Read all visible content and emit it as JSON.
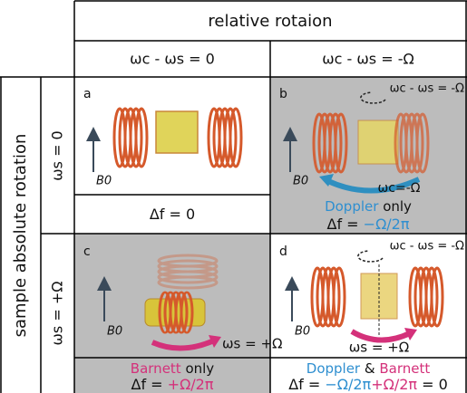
{
  "header": {
    "title": "relative rotaion",
    "columns": [
      "ωc - ωs = 0",
      "ωc - ωs = -Ω"
    ]
  },
  "rows_header": {
    "title": "sample absolute rotation",
    "rows": [
      "ωs = 0",
      "ωs = +Ω"
    ]
  },
  "panels": [
    {
      "letter": "a",
      "field_label": "B0",
      "formula": [
        "Δf = 0"
      ]
    },
    {
      "letter": "b",
      "field_label": "B0",
      "annotations": [
        "ωc - ωs = -Ω",
        "ωc=-Ω"
      ],
      "caption": [
        "Doppler",
        " only"
      ],
      "formula": [
        "Δf = ",
        "−Ω/2π"
      ]
    },
    {
      "letter": "c",
      "field_label": "B0",
      "annotations": [
        "ωs = +Ω"
      ],
      "caption": [
        "Barnett",
        " only"
      ],
      "formula": [
        "Δf = ",
        "+Ω/2π"
      ]
    },
    {
      "letter": "d",
      "field_label": "B0",
      "annotations": [
        "ωc - ωs = -Ω",
        "ωs = +Ω"
      ],
      "caption": [
        "Doppler",
        " & ",
        "Barnett"
      ],
      "formula": [
        "Δf = ",
        "−Ω/2π",
        "+Ω/2π",
        " = 0"
      ]
    }
  ]
}
